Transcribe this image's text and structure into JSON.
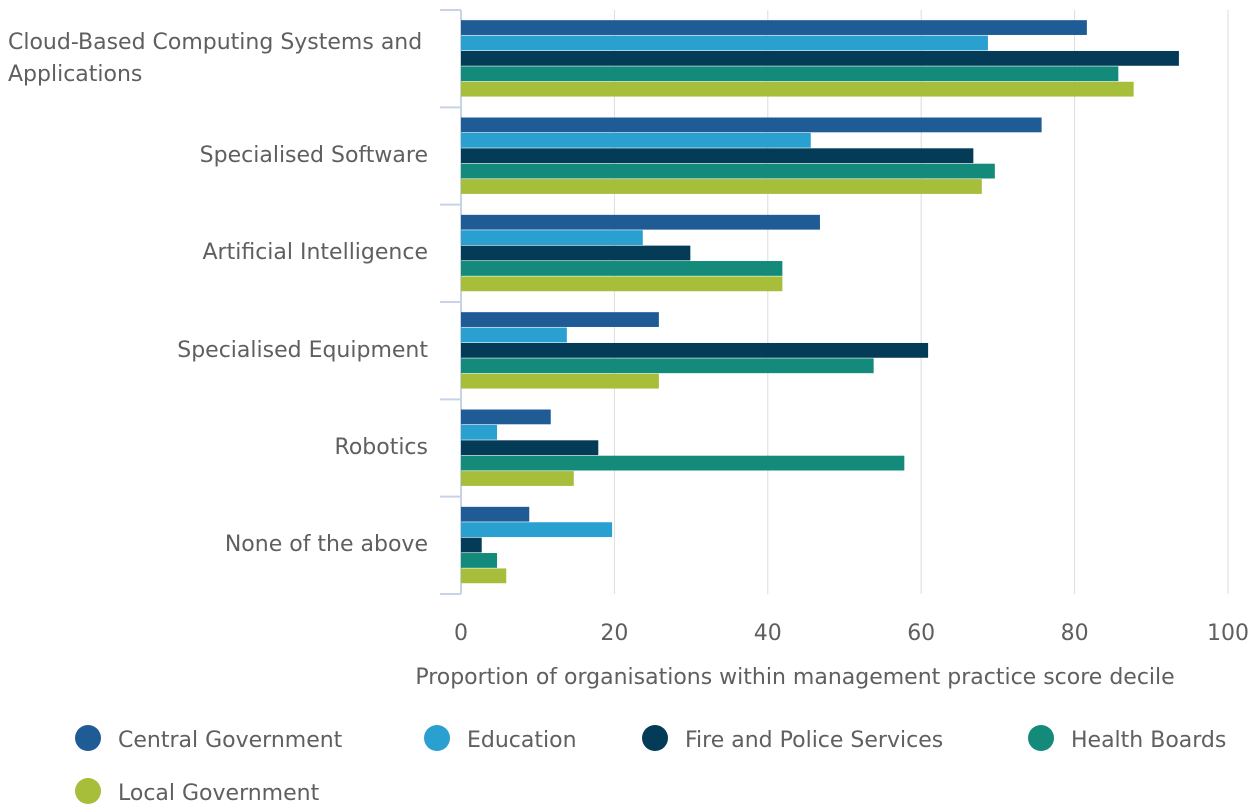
{
  "chart_data": {
    "type": "hbar",
    "categories": [
      "Cloud-Based Computing Systems and Applications",
      "Specialised Software",
      "Artificial Intelligence",
      "Specialised Equipment",
      "Robotics",
      "None of the above"
    ],
    "series": [
      {
        "name": "Central Government",
        "color": "#1f5b94",
        "values": [
          81.6,
          75.7,
          46.8,
          25.8,
          11.7,
          8.9
        ]
      },
      {
        "name": "Education",
        "color": "#29a0d0",
        "values": [
          68.7,
          45.6,
          23.7,
          13.8,
          4.7,
          19.7
        ]
      },
      {
        "name": "Fire and Police Services",
        "color": "#043b57",
        "values": [
          93.6,
          66.8,
          29.9,
          60.9,
          17.9,
          2.7
        ]
      },
      {
        "name": "Health Boards",
        "color": "#138a7a",
        "values": [
          85.7,
          69.6,
          41.9,
          53.8,
          57.8,
          4.7
        ]
      },
      {
        "name": "Local Government",
        "color": "#a6be3a",
        "values": [
          87.7,
          67.9,
          41.9,
          25.8,
          14.7,
          5.9
        ]
      }
    ],
    "xlabel": "Proportion of organisations within management practice score decile",
    "xlim": [
      0,
      100
    ],
    "xticks": [
      0,
      20,
      40,
      60,
      80,
      100
    ],
    "grid": true
  }
}
